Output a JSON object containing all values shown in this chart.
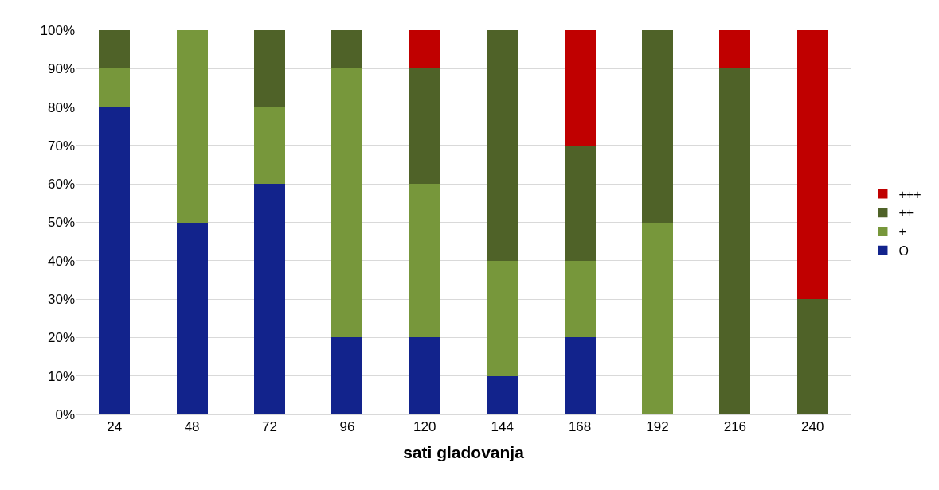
{
  "chart_data": {
    "type": "bar",
    "stacked": true,
    "xlabel": "sati gladovanja",
    "categories": [
      "24",
      "48",
      "72",
      "96",
      "120",
      "144",
      "168",
      "192",
      "216",
      "240"
    ],
    "series": [
      {
        "name": "O",
        "color": "#12238c",
        "values": [
          80,
          50,
          60,
          20,
          20,
          10,
          20,
          0,
          0,
          0
        ]
      },
      {
        "name": "+",
        "color": "#77973b",
        "values": [
          10,
          50,
          20,
          70,
          40,
          30,
          20,
          50,
          0,
          0
        ]
      },
      {
        "name": "++",
        "color": "#4f6228",
        "values": [
          10,
          0,
          20,
          10,
          30,
          60,
          30,
          50,
          90,
          30
        ]
      },
      {
        "name": "+++",
        "color": "#c00000",
        "values": [
          0,
          0,
          0,
          0,
          10,
          0,
          30,
          0,
          10,
          70
        ]
      }
    ],
    "ylim": [
      0,
      100
    ],
    "yticks": [
      {
        "value": 0,
        "label": "0%"
      },
      {
        "value": 10,
        "label": "10%"
      },
      {
        "value": 20,
        "label": "20%"
      },
      {
        "value": 30,
        "label": "30%"
      },
      {
        "value": 40,
        "label": "40%"
      },
      {
        "value": 50,
        "label": "50%"
      },
      {
        "value": 60,
        "label": "60%"
      },
      {
        "value": 70,
        "label": "70%"
      },
      {
        "value": 80,
        "label": "80%"
      },
      {
        "value": 90,
        "label": "90%"
      },
      {
        "value": 100,
        "label": "100%"
      }
    ],
    "grid": "y",
    "legend": "right"
  }
}
